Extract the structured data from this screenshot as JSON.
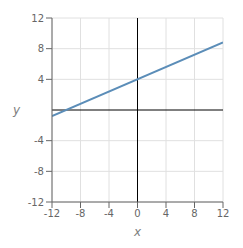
{
  "chart_data": {
    "type": "line",
    "xlabel": "x",
    "ylabel": "y",
    "x": [
      -12,
      12
    ],
    "values": [
      -0.8,
      8.8
    ],
    "color": "#5B8DB8",
    "xlim": [
      -12,
      12
    ],
    "ylim": [
      -12,
      12
    ],
    "xticks": [
      -12,
      -8,
      -4,
      0,
      4,
      8,
      12
    ],
    "yticks": [
      -12,
      -8,
      -4,
      4,
      8,
      12
    ],
    "grid": true
  }
}
